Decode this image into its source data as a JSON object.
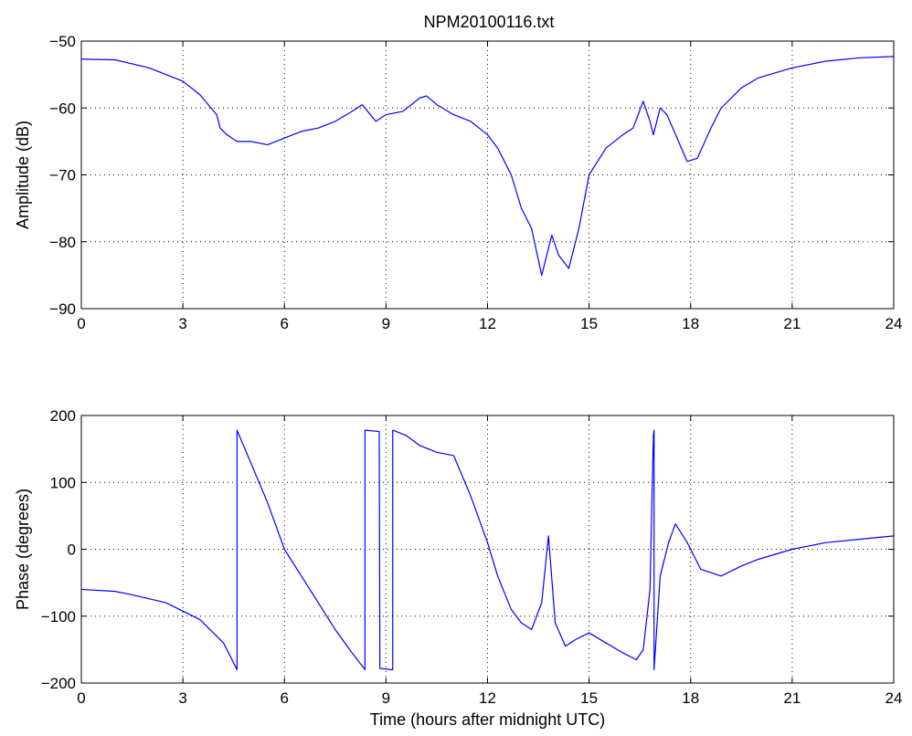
{
  "page_title": "NPM20100116.txt",
  "colors": {
    "line": "#0000ff",
    "axis": "#000000",
    "grid": "#000000",
    "background": "#ffffff"
  },
  "chart_data": [
    {
      "id": "amplitude",
      "type": "line",
      "title": "NPM20100116.txt",
      "xlabel": "",
      "ylabel": "Amplitude (dB)",
      "xlim": [
        0,
        24
      ],
      "ylim": [
        -90,
        -50
      ],
      "xticks": [
        0,
        3,
        6,
        9,
        12,
        15,
        18,
        21,
        24
      ],
      "yticks": [
        -90,
        -80,
        -70,
        -60,
        -50
      ],
      "grid": true,
      "series": [
        {
          "color": "#0000ff",
          "x": [
            0,
            1,
            2,
            3,
            3.5,
            4,
            4.1,
            4.3,
            4.6,
            5,
            5.5,
            6,
            6.5,
            7,
            7.5,
            8,
            8.3,
            8.7,
            9,
            9.5,
            10,
            10.2,
            10.5,
            11,
            11.5,
            12,
            12.3,
            12.7,
            13,
            13.3,
            13.6,
            13.9,
            14.1,
            14.4,
            14.7,
            15,
            15.5,
            16,
            16.3,
            16.6,
            16.8,
            16.9,
            17.1,
            17.3,
            17.6,
            17.9,
            18.2,
            18.6,
            18.9,
            19.5,
            20,
            21,
            22,
            23,
            24
          ],
          "y": [
            -52.7,
            -52.8,
            -54,
            -56,
            -58,
            -61,
            -63,
            -64,
            -65,
            -65,
            -65.5,
            -64.5,
            -63.5,
            -63,
            -62,
            -60.5,
            -59.5,
            -62,
            -61,
            -60.5,
            -58.5,
            -58.2,
            -59.5,
            -61,
            -62,
            -64,
            -66,
            -70,
            -75,
            -78,
            -85,
            -79,
            -82,
            -84,
            -78,
            -70,
            -66,
            -64,
            -63,
            -59,
            -62,
            -64,
            -60,
            -61,
            -64.5,
            -68,
            -67.5,
            -63,
            -60,
            -57,
            -55.5,
            -54,
            -53,
            -52.5,
            -52.3
          ]
        }
      ]
    },
    {
      "id": "phase",
      "type": "line",
      "title": "",
      "xlabel": "Time (hours after midnight UTC)",
      "ylabel": "Phase (degrees)",
      "xlim": [
        0,
        24
      ],
      "ylim": [
        -200,
        200
      ],
      "xticks": [
        0,
        3,
        6,
        9,
        12,
        15,
        18,
        21,
        24
      ],
      "yticks": [
        -200,
        -100,
        0,
        100,
        200
      ],
      "grid": true,
      "series": [
        {
          "color": "#0000ff",
          "x": [
            0,
            1,
            1.5,
            2.5,
            3.5,
            4.2,
            4.55,
            4.6,
            4.6,
            5,
            5.5,
            6,
            6.5,
            7,
            7.5,
            8,
            8.35,
            8.38,
            8.38,
            8.8,
            8.82,
            8.82,
            9.15,
            9.2,
            9.2,
            9.6,
            10,
            10.5,
            11,
            11.5,
            12,
            12.3,
            12.7,
            13,
            13.3,
            13.6,
            13.8,
            14,
            14.3,
            14.6,
            15,
            15.5,
            16,
            16.4,
            16.6,
            16.8,
            16.9,
            16.92,
            16.92,
            17.1,
            17.35,
            17.55,
            17.9,
            18.3,
            18.9,
            19.5,
            20,
            21,
            22,
            23,
            24
          ],
          "y": [
            -60,
            -63,
            -68,
            -80,
            -105,
            -140,
            -175,
            -180,
            178,
            130,
            70,
            0,
            -40,
            -80,
            -120,
            -155,
            -178,
            -180,
            178,
            176,
            -178,
            -178,
            -180,
            -180,
            178,
            170,
            155,
            145,
            140,
            80,
            10,
            -40,
            -90,
            -110,
            -120,
            -80,
            20,
            -110,
            -145,
            -135,
            -125,
            -140,
            -155,
            -165,
            -150,
            -60,
            170,
            178,
            -180,
            -40,
            10,
            38,
            10,
            -30,
            -40,
            -25,
            -15,
            0,
            10,
            15,
            20
          ]
        }
      ]
    }
  ]
}
